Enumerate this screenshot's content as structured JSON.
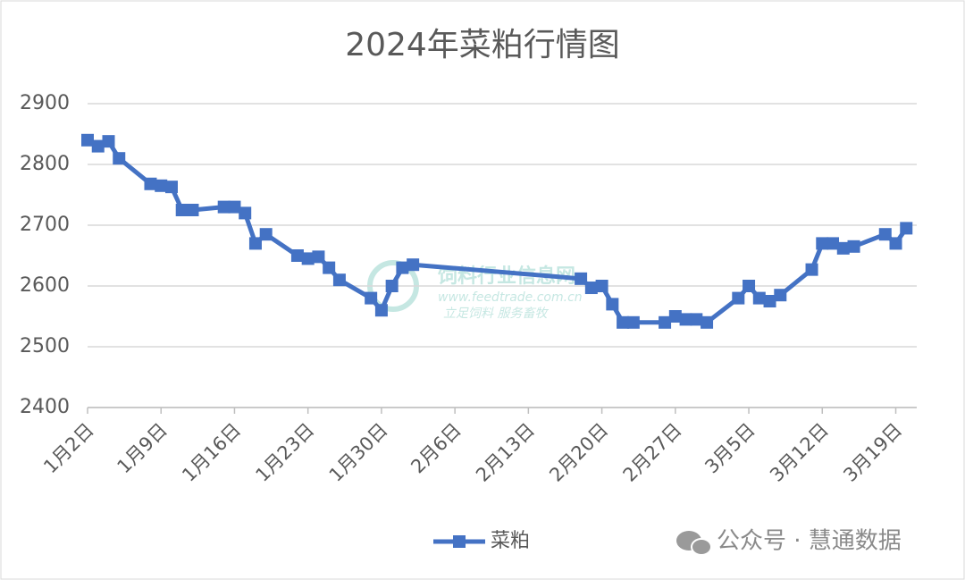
{
  "chart_data": {
    "type": "line",
    "title": "2024年菜粕行情图",
    "x": [
      "1月2日",
      "1月3日",
      "1月4日",
      "1月5日",
      "1月8日",
      "1月9日",
      "1月10日",
      "1月11日",
      "1月12日",
      "1月15日",
      "1月16日",
      "1月17日",
      "1月18日",
      "1月19日",
      "1月22日",
      "1月23日",
      "1月24日",
      "1月25日",
      "1月26日",
      "1月29日",
      "1月30日",
      "1月31日",
      "2月1日",
      "2月2日",
      "2月18日",
      "2月19日",
      "2月20日",
      "2月21日",
      "2月22日",
      "2月23日",
      "2月26日",
      "2月27日",
      "2月28日",
      "2月29日",
      "3月1日",
      "3月4日",
      "3月5日",
      "3月6日",
      "3月7日",
      "3月8日",
      "3月11日",
      "3月12日",
      "3月13日",
      "3月14日",
      "3月15日",
      "3月18日",
      "3月19日",
      "3月20日"
    ],
    "series": [
      {
        "name": "菜粕",
        "color": "#4472c4",
        "values": [
          2840,
          2830,
          2838,
          2810,
          2768,
          2765,
          2763,
          2725,
          2725,
          2730,
          2730,
          2720,
          2670,
          2685,
          2650,
          2645,
          2648,
          2630,
          2610,
          2580,
          2560,
          2600,
          2630,
          2635,
          2612,
          2597,
          2600,
          2570,
          2540,
          2540,
          2540,
          2550,
          2545,
          2545,
          2540,
          2580,
          2600,
          2580,
          2575,
          2585,
          2627,
          2670,
          2670,
          2662,
          2665,
          2685,
          2670,
          2695
        ]
      }
    ],
    "xlim": [
      "1月2日",
      "3月21日"
    ],
    "xticks": [
      "1月2日",
      "1月9日",
      "1月16日",
      "1月23日",
      "1月30日",
      "2月6日",
      "2月13日",
      "2月20日",
      "2月27日",
      "3月5日",
      "3月12日",
      "3月19日"
    ],
    "ylim": [
      2400,
      2900
    ],
    "yticks": [
      2400,
      2500,
      2600,
      2700,
      2800,
      2900
    ],
    "grid": true,
    "legend": "bottom",
    "watermark": {
      "name": "饲料行业信息网",
      "url": "www.feedtrade.com.cn",
      "slogan": "立足饲料  服务畜牧"
    },
    "source_tag": "公众号 · 慧通数据"
  }
}
